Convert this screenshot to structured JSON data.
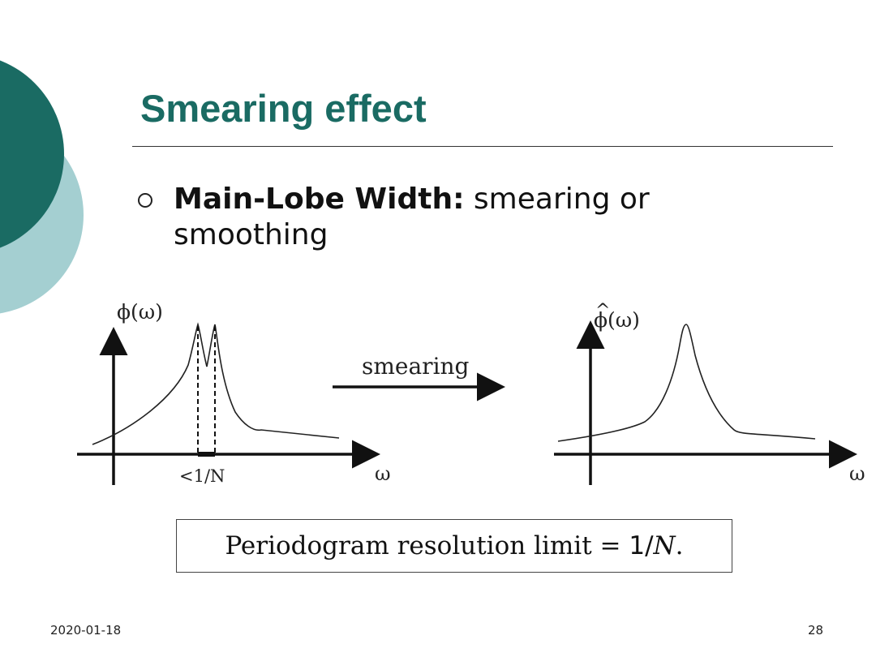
{
  "slide": {
    "title": "Smearing effect",
    "bullet": {
      "bold_label": "Main-Lobe Width:",
      "text": " smearing or smoothing"
    },
    "diagram": {
      "left_ylabel": "ϕ(ω)",
      "right_ylabel": "ϕ(ω)",
      "right_ylabel_accent": "^",
      "xlabel_left": "ω",
      "xlabel_right": "ω",
      "width_label": "<1/N",
      "arrow_label": "smearing"
    },
    "formula": {
      "prefix": "Periodogram resolution limit = ",
      "one": "1",
      "slash": "/",
      "var": "N",
      "suffix": "."
    },
    "footer": {
      "date": "2020-01-18",
      "page": "28"
    },
    "colors": {
      "title": "#1a6b63",
      "circle_dark": "#1a6b63",
      "circle_light": "#a4cfd1"
    }
  }
}
